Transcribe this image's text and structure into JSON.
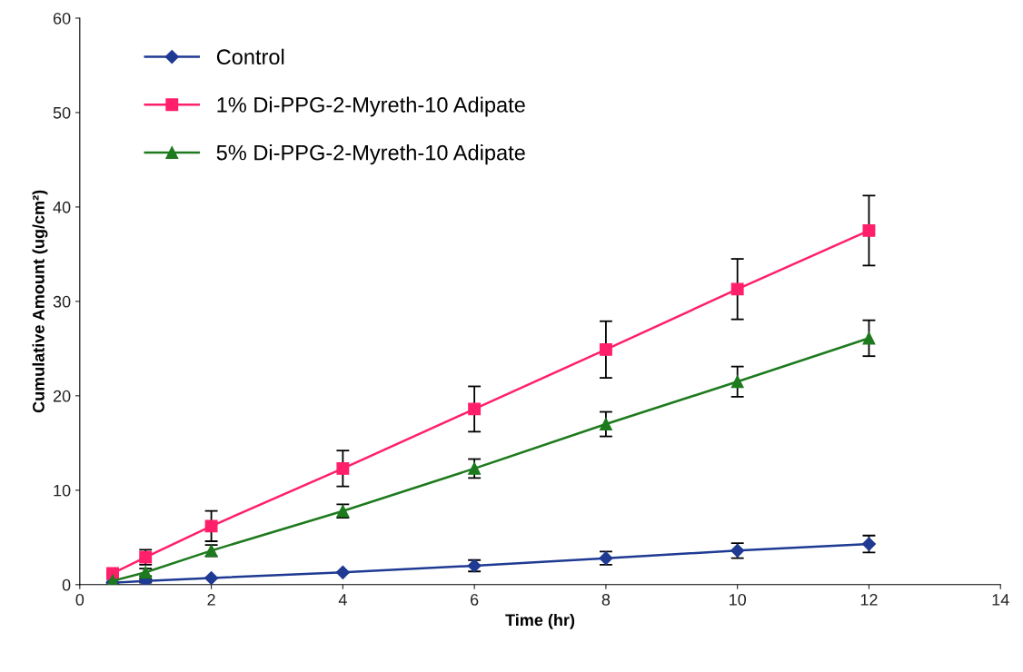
{
  "chart_data": {
    "type": "line",
    "xlabel": "Time (hr)",
    "ylabel": "Cumulative Amount (ug/cm²)",
    "x": [
      0.5,
      1,
      2,
      4,
      6,
      8,
      10,
      12
    ],
    "series": [
      {
        "name": "Control",
        "color": "#1f3a93",
        "marker": "diamond",
        "values": [
          0.2,
          0.4,
          0.7,
          1.3,
          2.0,
          2.8,
          3.6,
          4.3
        ],
        "errors": [
          0.1,
          0.2,
          null,
          null,
          0.6,
          0.7,
          0.8,
          0.9
        ]
      },
      {
        "name": "1% Di-PPG-2-Myreth-10 Adipate",
        "color": "#ff1f6b",
        "marker": "square",
        "values": [
          1.2,
          2.9,
          6.2,
          12.3,
          18.6,
          24.9,
          31.3,
          37.5
        ],
        "errors": [
          null,
          0.8,
          1.6,
          1.9,
          2.4,
          3.0,
          3.2,
          3.7
        ]
      },
      {
        "name": "5% Di-PPG-2-Myreth-10 Adipate",
        "color": "#1e7a1e",
        "marker": "triangle",
        "values": [
          0.4,
          1.3,
          3.6,
          7.8,
          12.3,
          17.0,
          21.5,
          26.1
        ],
        "errors": [
          0.2,
          0.4,
          0.6,
          0.7,
          1.0,
          1.3,
          1.6,
          1.9
        ]
      }
    ],
    "xlim": [
      0,
      14
    ],
    "xticks": [
      0,
      2,
      4,
      6,
      8,
      10,
      12,
      14
    ],
    "ylim": [
      0,
      60
    ],
    "yticks": [
      0,
      10,
      20,
      30,
      40,
      50,
      60
    ],
    "grid": false,
    "legend": "top left",
    "line_style": "solid"
  }
}
